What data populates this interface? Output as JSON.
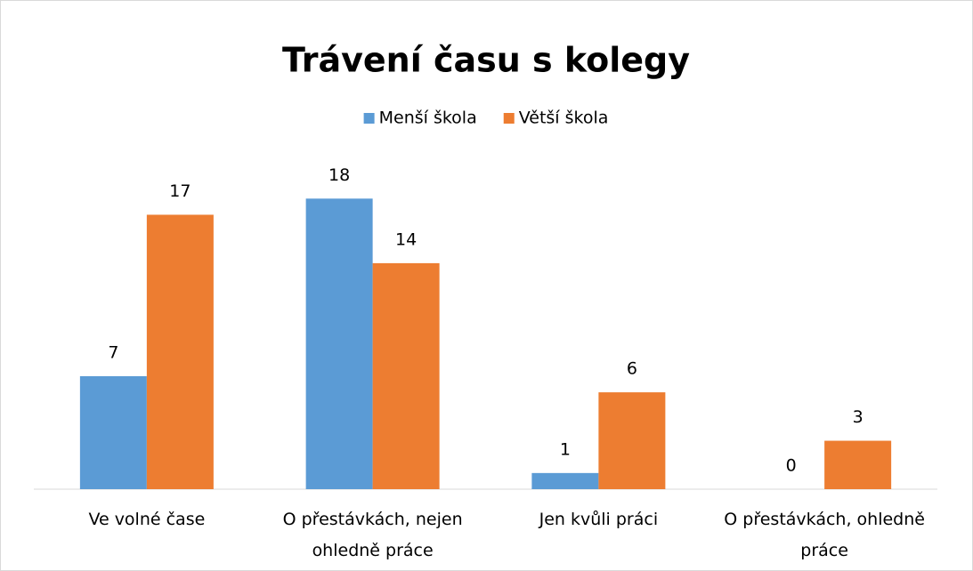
{
  "chart_data": {
    "type": "bar",
    "title": "Trávení času s kolegy",
    "categories": [
      "Ve volné čase",
      "O přestávkách, nejen ohledně práce",
      "Jen kvůli práci",
      "O přestávkách, ohledně práce"
    ],
    "series": [
      {
        "name": "Menší škola",
        "color": "#5b9bd5",
        "values": [
          7,
          18,
          1,
          0
        ]
      },
      {
        "name": "Větší škola",
        "color": "#ed7d31",
        "values": [
          17,
          14,
          6,
          3
        ]
      }
    ],
    "ylim": [
      0,
      20
    ],
    "legend": "top"
  }
}
